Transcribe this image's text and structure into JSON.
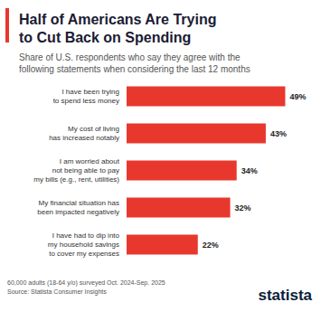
{
  "chart_data": {
    "type": "bar",
    "orientation": "horizontal",
    "title": "Half of Americans Are Trying\nto Cut Back on Spending",
    "subtitle": "Share of U.S. respondents who say they agree with the\nfollowing statements when considering the last 12 months",
    "categories": [
      "I have been trying\nto spend less money",
      "My cost of living\nhas increased notably",
      "I am worried about\nnot being able to pay\nmy bills (e.g., rent, utilities)",
      "My financial situation has\nbeen impacted negatively",
      "I have had to dip into\nmy household savings\nto cover my expenses"
    ],
    "values": [
      49,
      43,
      34,
      32,
      22
    ],
    "value_labels": [
      "49%",
      "43%",
      "34%",
      "32%",
      "22%"
    ],
    "color": "#e8382e",
    "xlim": [
      0,
      50
    ],
    "grid": false,
    "data_labels": true,
    "tick_labels": "y",
    "footnote": "60,000 adults (18-64 y/o) surveyed Oct. 2024-Sep. 2025",
    "source": "Source: Statista Consumer Insights",
    "brand": "statista"
  }
}
